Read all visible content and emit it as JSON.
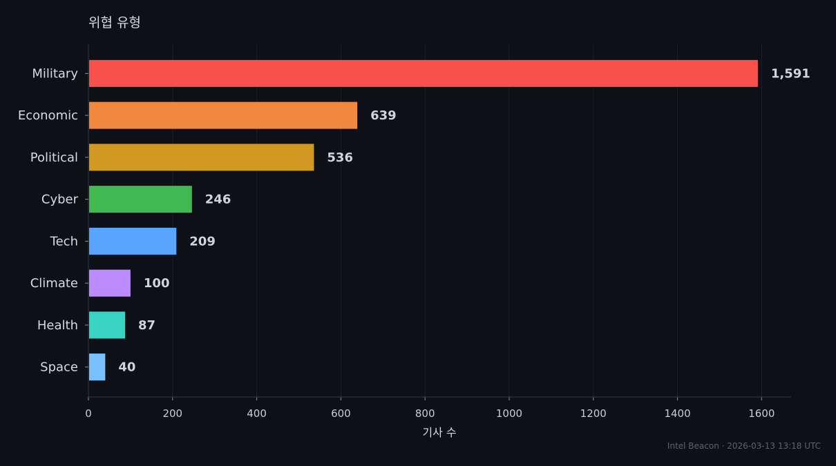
{
  "chart_data": {
    "type": "bar",
    "orientation": "horizontal",
    "title": "위협 유형",
    "xlabel": "기사 수",
    "ylabel": "",
    "categories": [
      "Military",
      "Economic",
      "Political",
      "Cyber",
      "Tech",
      "Climate",
      "Health",
      "Space"
    ],
    "values": [
      1591,
      639,
      536,
      246,
      209,
      100,
      87,
      40
    ],
    "value_labels": [
      "1,591",
      "639",
      "536",
      "246",
      "209",
      "100",
      "87",
      "40"
    ],
    "colors": [
      "#f8514b",
      "#f0883e",
      "#d29922",
      "#3fb950",
      "#58a6ff",
      "#bc8cff",
      "#39d3c3",
      "#79c0ff"
    ],
    "xlim": [
      0,
      1670
    ],
    "xticks": [
      0,
      200,
      400,
      600,
      800,
      1000,
      1200,
      1400,
      1600
    ],
    "xtick_labels": [
      "0",
      "200",
      "400",
      "600",
      "800",
      "1000",
      "1200",
      "1400",
      "1600"
    ],
    "grid": true,
    "legend": "none"
  },
  "footer": {
    "text": "Intel Beacon · 2026-03-13 13:18 UTC"
  }
}
